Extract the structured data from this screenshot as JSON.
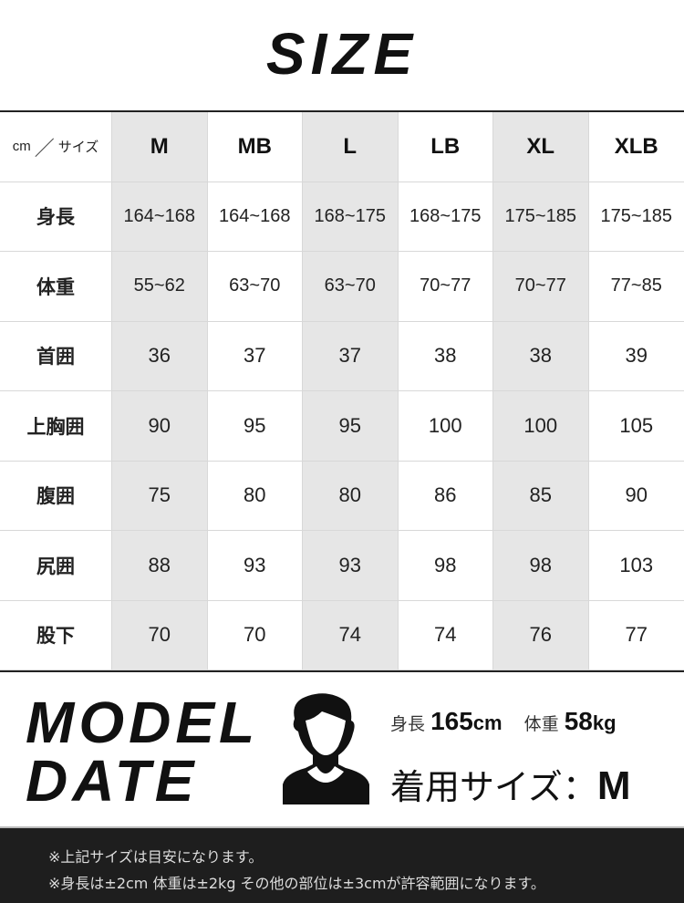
{
  "title": "SIZE",
  "table": {
    "corner_unit": "cm",
    "corner_slash": "／",
    "corner_size": "サイズ",
    "sizes": [
      "M",
      "MB",
      "L",
      "LB",
      "XL",
      "XLB"
    ],
    "shaded_sizes": [
      "M",
      "L",
      "XL"
    ],
    "shade_color": "#e6e6e6",
    "rows": [
      {
        "label": "身長",
        "values": [
          "164~168",
          "164~168",
          "168~175",
          "168~175",
          "175~185",
          "175~185"
        ]
      },
      {
        "label": "体重",
        "values": [
          "55~62",
          "63~70",
          "63~70",
          "70~77",
          "70~77",
          "77~85"
        ]
      },
      {
        "label": "首囲",
        "values": [
          "36",
          "37",
          "37",
          "38",
          "38",
          "39"
        ]
      },
      {
        "label": "上胸囲",
        "values": [
          "90",
          "95",
          "95",
          "100",
          "100",
          "105"
        ]
      },
      {
        "label": "腹囲",
        "values": [
          "75",
          "80",
          "80",
          "86",
          "85",
          "90"
        ]
      },
      {
        "label": "尻囲",
        "values": [
          "88",
          "93",
          "93",
          "98",
          "98",
          "103"
        ]
      },
      {
        "label": "股下",
        "values": [
          "70",
          "70",
          "74",
          "74",
          "76",
          "77"
        ]
      }
    ]
  },
  "model": {
    "heading_line1": "MODEL",
    "heading_line2": "DATE",
    "avatar_icon": "person-silhouette-icon",
    "height_label": "身長",
    "height_value": "165",
    "height_unit": "cm",
    "weight_label": "体重",
    "weight_value": "58",
    "weight_unit": "kg",
    "worn_label": "着用サイズ",
    "worn_sep": "：",
    "worn_size": "M"
  },
  "footer": {
    "note1": "※上記サイズは目安になります。",
    "note2": "※身長は±2cm 体重は±2kg その他の部位は±3cmが許容範囲になります。"
  },
  "colors": {
    "footer_bg": "#1e1e1e",
    "text": "#111111"
  }
}
